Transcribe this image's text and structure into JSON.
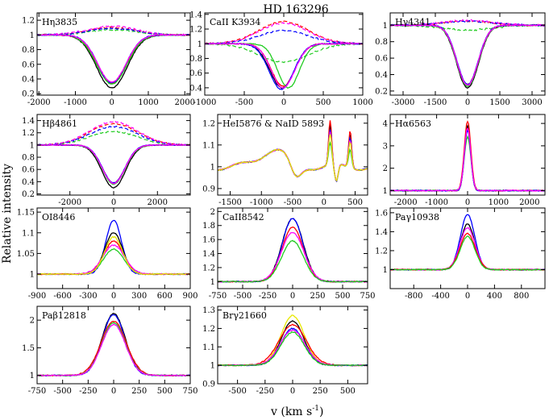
{
  "figure": {
    "title": "HD 163296",
    "xlabel_main": "v (km s",
    "xlabel_sup": "-1",
    "xlabel_close": ")",
    "ylabel": "Relative intensity"
  },
  "colors": {
    "black": "#000000",
    "red": "#ff0000",
    "green": "#22cc22",
    "blue": "#0000ff",
    "magenta": "#ff00ff",
    "yellow": "#e8e800"
  },
  "chart_data": [
    {
      "type": "line",
      "label": "Hη3835",
      "xlim": [
        -2050,
        2150
      ],
      "ylim": [
        0.18,
        1.3
      ],
      "xticks": [
        -2000,
        -1000,
        0,
        1000,
        2000
      ],
      "yticks": [
        0.2,
        0.4,
        0.6,
        0.8,
        1.0,
        1.2
      ],
      "series": [
        {
          "name": "black",
          "kind": "abs",
          "width": 700,
          "depth": 0.72
        },
        {
          "name": "red",
          "kind": "abs",
          "width": 680,
          "depth": 0.66
        },
        {
          "name": "green",
          "kind": "abs",
          "width": 690,
          "depth": 0.67
        },
        {
          "name": "blue",
          "kind": "abs",
          "width": 650,
          "depth": 0.65
        },
        {
          "name": "magenta",
          "kind": "abs",
          "width": 660,
          "depth": 0.64
        }
      ],
      "residual_series": [
        {
          "name": "red",
          "amp": 0.1
        },
        {
          "name": "green",
          "amp": 0.07
        },
        {
          "name": "blue",
          "amp": 0.09
        },
        {
          "name": "magenta",
          "amp": 0.12
        }
      ]
    },
    {
      "type": "line",
      "label": "CaII K3934",
      "xlim": [
        -1000,
        1000
      ],
      "ylim": [
        0.3,
        1.42
      ],
      "xticks": [
        -1000,
        -500,
        0,
        500,
        1000
      ],
      "yticks": [
        0.4,
        0.6,
        0.8,
        1.0,
        1.2,
        1.4
      ],
      "series": [
        {
          "name": "black",
          "kind": "abs",
          "width": 260,
          "depth": 0.6,
          "center": -20
        },
        {
          "name": "red",
          "kind": "abs",
          "width": 250,
          "depth": 0.58,
          "center": -10
        },
        {
          "name": "green",
          "kind": "abs",
          "width": 230,
          "depth": 0.6,
          "center": 60
        },
        {
          "name": "blue",
          "kind": "abs",
          "width": 260,
          "depth": 0.62,
          "center": -30
        },
        {
          "name": "magenta",
          "kind": "abs",
          "width": 250,
          "depth": 0.6,
          "center": -10
        }
      ],
      "residual_series": [
        {
          "name": "red",
          "amp": 0.3
        },
        {
          "name": "green",
          "amp": -0.25
        },
        {
          "name": "blue",
          "amp": 0.18
        },
        {
          "name": "magenta",
          "amp": 0.28
        }
      ]
    },
    {
      "type": "line",
      "label": "Hγ4341",
      "xlim": [
        -3600,
        3600
      ],
      "ylim": [
        0.15,
        1.15
      ],
      "xticks": [
        -3000,
        -1500,
        0,
        1500,
        3000
      ],
      "yticks": [
        0.2,
        0.4,
        0.6,
        0.8,
        1.0
      ],
      "series": [
        {
          "name": "black",
          "kind": "abs",
          "width": 850,
          "depth": 0.76
        },
        {
          "name": "red",
          "kind": "abs",
          "width": 830,
          "depth": 0.72
        },
        {
          "name": "green",
          "kind": "abs",
          "width": 840,
          "depth": 0.74
        },
        {
          "name": "blue",
          "kind": "abs",
          "width": 820,
          "depth": 0.72
        },
        {
          "name": "magenta",
          "kind": "abs",
          "width": 830,
          "depth": 0.73
        }
      ],
      "residual_series": [
        {
          "name": "red",
          "amp": 0.05
        },
        {
          "name": "green",
          "amp": -0.06
        },
        {
          "name": "blue",
          "amp": 0.05
        },
        {
          "name": "magenta",
          "amp": 0.06
        }
      ]
    },
    {
      "type": "line",
      "label": "Hβ4861",
      "xlim": [
        -3500,
        3500
      ],
      "ylim": [
        0.18,
        1.5
      ],
      "xticks": [
        -2000,
        0,
        2000
      ],
      "yticks": [
        0.2,
        0.4,
        0.6,
        0.8,
        1.0,
        1.2,
        1.4
      ],
      "series": [
        {
          "name": "black",
          "kind": "abs",
          "width": 900,
          "depth": 0.7
        },
        {
          "name": "red",
          "kind": "abs",
          "width": 870,
          "depth": 0.62
        },
        {
          "name": "green",
          "kind": "abs",
          "width": 880,
          "depth": 0.64
        },
        {
          "name": "blue",
          "kind": "abs",
          "width": 860,
          "depth": 0.62
        },
        {
          "name": "magenta",
          "kind": "abs",
          "width": 870,
          "depth": 0.63
        }
      ],
      "residual_series": [
        {
          "name": "red",
          "amp": 0.35
        },
        {
          "name": "green",
          "amp": 0.22
        },
        {
          "name": "blue",
          "amp": 0.3
        },
        {
          "name": "magenta",
          "amp": 0.38
        }
      ]
    },
    {
      "type": "line",
      "label": "HeI5876 & NaID 5893",
      "xlim": [
        -1700,
        700
      ],
      "ylim": [
        0.87,
        1.24
      ],
      "xticks": [
        -1500,
        -1000,
        -500,
        0,
        500
      ],
      "yticks": [
        0.9,
        1.0,
        1.1,
        1.2
      ],
      "series": [
        {
          "name": "black",
          "kind": "nad",
          "amp": 0.18
        },
        {
          "name": "red",
          "kind": "nad",
          "amp": 0.2
        },
        {
          "name": "green",
          "kind": "nad",
          "amp": 0.1
        },
        {
          "name": "blue",
          "kind": "nad",
          "amp": 0.16
        },
        {
          "name": "magenta",
          "kind": "nad",
          "amp": 0.15
        },
        {
          "name": "yellow",
          "kind": "nad",
          "amp": 0.14
        }
      ]
    },
    {
      "type": "line",
      "label": "Hα6563",
      "xlim": [
        -2500,
        2500
      ],
      "ylim": [
        0.8,
        4.4
      ],
      "xticks": [
        -2000,
        -1000,
        0,
        1000,
        2000
      ],
      "yticks": [
        1,
        2,
        3,
        4
      ],
      "series": [
        {
          "name": "black",
          "kind": "em",
          "amp": 2.9,
          "width": 140
        },
        {
          "name": "red",
          "kind": "em",
          "amp": 3.1,
          "width": 150
        },
        {
          "name": "green",
          "kind": "em",
          "amp": 2.4,
          "width": 150
        },
        {
          "name": "blue",
          "kind": "em",
          "amp": 2.7,
          "width": 145
        },
        {
          "name": "magenta",
          "kind": "em",
          "amp": 2.8,
          "width": 145
        }
      ]
    },
    {
      "type": "line",
      "label": "OI8446",
      "xlim": [
        -900,
        900
      ],
      "ylim": [
        0.965,
        1.16
      ],
      "xticks": [
        -900,
        -600,
        -300,
        0,
        300,
        600,
        900
      ],
      "yticks": [
        1.0,
        1.05,
        1.1,
        1.15
      ],
      "series": [
        {
          "name": "blue",
          "kind": "em",
          "amp": 0.13,
          "width": 130
        },
        {
          "name": "black",
          "kind": "em",
          "amp": 0.1,
          "width": 150
        },
        {
          "name": "red",
          "kind": "em",
          "amp": 0.08,
          "width": 160
        },
        {
          "name": "green",
          "kind": "em",
          "amp": 0.06,
          "width": 170
        },
        {
          "name": "magenta",
          "kind": "em",
          "amp": 0.07,
          "width": 180
        },
        {
          "name": "yellow",
          "kind": "em",
          "amp": 0.09,
          "width": 150
        }
      ]
    },
    {
      "type": "line",
      "label": "CaII8542",
      "xlim": [
        -750,
        750
      ],
      "ylim": [
        0.9,
        2.05
      ],
      "xticks": [
        -750,
        -500,
        -250,
        0,
        250,
        500,
        750
      ],
      "yticks": [
        1.0,
        1.2,
        1.4,
        1.6,
        1.8,
        2.0
      ],
      "series": [
        {
          "name": "black",
          "kind": "em",
          "amp": 0.9,
          "width": 150
        },
        {
          "name": "blue",
          "kind": "em",
          "amp": 0.9,
          "width": 145
        },
        {
          "name": "red",
          "kind": "em",
          "amp": 0.78,
          "width": 150
        },
        {
          "name": "magenta",
          "kind": "em",
          "amp": 0.7,
          "width": 160
        },
        {
          "name": "green",
          "kind": "em",
          "amp": 0.58,
          "width": 155
        }
      ]
    },
    {
      "type": "line",
      "label": "Paγ10938",
      "xlim": [
        -1150,
        1150
      ],
      "ylim": [
        0.8,
        1.65
      ],
      "xticks": [
        -800,
        -400,
        0,
        400,
        800
      ],
      "yticks": [
        1.0,
        1.2,
        1.4,
        1.6
      ],
      "series": [
        {
          "name": "blue",
          "kind": "em",
          "amp": 0.58,
          "width": 150
        },
        {
          "name": "black",
          "kind": "em",
          "amp": 0.48,
          "width": 150
        },
        {
          "name": "magenta",
          "kind": "em",
          "amp": 0.44,
          "width": 160
        },
        {
          "name": "red",
          "kind": "em",
          "amp": 0.38,
          "width": 160
        },
        {
          "name": "green",
          "kind": "em",
          "amp": 0.35,
          "width": 155
        }
      ]
    },
    {
      "type": "line",
      "label": "Paβ12818",
      "xlim": [
        -750,
        750
      ],
      "ylim": [
        0.85,
        2.25
      ],
      "xticks": [
        -750,
        -500,
        -250,
        0,
        250,
        500,
        750
      ],
      "yticks": [
        1.0,
        1.5,
        2.0
      ],
      "series": [
        {
          "name": "black",
          "kind": "em",
          "amp": 1.12,
          "width": 160
        },
        {
          "name": "blue",
          "kind": "em",
          "amp": 1.1,
          "width": 155
        },
        {
          "name": "red",
          "kind": "em",
          "amp": 0.98,
          "width": 175
        },
        {
          "name": "green",
          "kind": "em",
          "amp": 0.95,
          "width": 165
        },
        {
          "name": "magenta",
          "kind": "em",
          "amp": 0.92,
          "width": 165
        }
      ]
    },
    {
      "type": "line",
      "label": "Brγ21660",
      "xlim": [
        -680,
        680
      ],
      "ylim": [
        0.9,
        1.32
      ],
      "xticks": [
        -500,
        -250,
        0,
        250,
        500
      ],
      "yticks": [
        0.9,
        1.0,
        1.1,
        1.2,
        1.3
      ],
      "series": [
        {
          "name": "yellow",
          "kind": "em",
          "amp": 0.27,
          "width": 150
        },
        {
          "name": "black",
          "kind": "em",
          "amp": 0.24,
          "width": 145
        },
        {
          "name": "red",
          "kind": "em",
          "amp": 0.22,
          "width": 175
        },
        {
          "name": "blue",
          "kind": "em",
          "amp": 0.2,
          "width": 150
        },
        {
          "name": "magenta",
          "kind": "em",
          "amp": 0.19,
          "width": 160
        },
        {
          "name": "green",
          "kind": "em",
          "amp": 0.18,
          "width": 150
        }
      ]
    }
  ]
}
